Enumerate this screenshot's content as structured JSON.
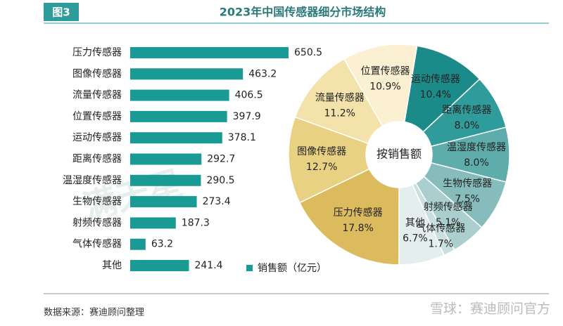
{
  "figure_label": "图3",
  "title": "2023年中国传感器细分市场结构",
  "source": "数据来源：赛迪顾问整理",
  "watermarks": [
    "满天星",
    "雪球：赛迪顾问官方"
  ],
  "chart_data": [
    {
      "type": "bar",
      "categories": [
        "压力传感器",
        "图像传感器",
        "流量传感器",
        "位置传感器",
        "运动传感器",
        "距离传感器",
        "温湿度传感器",
        "生物传感器",
        "射频传感器",
        "气体传感器",
        "其他"
      ],
      "series": [
        {
          "name": "销售额（亿元）",
          "color": "#1a9a94",
          "values": [
            650.5,
            463.2,
            406.5,
            397.9,
            378.1,
            292.7,
            290.5,
            273.4,
            187.3,
            63.2,
            241.4
          ]
        }
      ]
    },
    {
      "type": "pie",
      "center_label": "按销售额",
      "categories": [
        "运动传感器",
        "距离传感器",
        "温湿度传感器",
        "生物传感器",
        "射频传感器",
        "气体传感器",
        "其他",
        "压力传感器",
        "图像传感器",
        "流量传感器",
        "位置传感器"
      ],
      "values": [
        10.4,
        8.0,
        8.0,
        7.5,
        5.1,
        1.7,
        6.7,
        17.8,
        12.7,
        11.2,
        10.9
      ],
      "value_labels": [
        "10.4%",
        "8.0%",
        "8.0%",
        "7.5%",
        "5.1%",
        "1.7%",
        "6.7%",
        "17.8%",
        "12.7%",
        "11.2%",
        "10.9%"
      ],
      "colors": [
        "#1b8b8a",
        "#2f9c9b",
        "#5eadac",
        "#86bdbc",
        "#aacfce",
        "#c9e0df",
        "#e5eeee",
        "#dbbb5e",
        "#e9d184",
        "#f3e2aa",
        "#fbf0d2"
      ]
    }
  ]
}
